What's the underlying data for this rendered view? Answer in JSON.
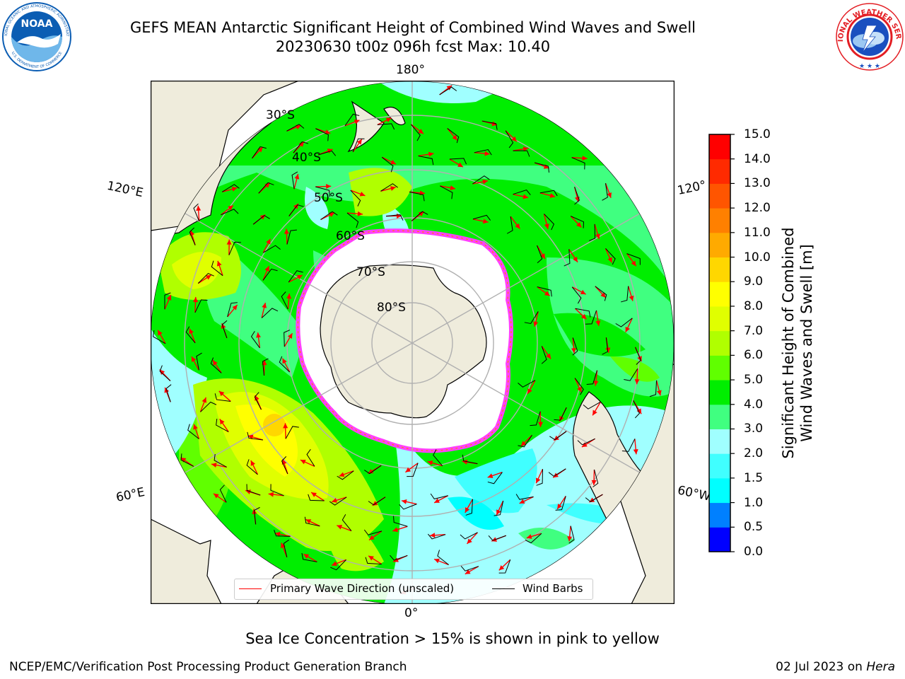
{
  "title": {
    "line1": "GEFS MEAN Antarctic Significant Height of Combined Wind Waves and Swell",
    "line2": "20230630 t00z 096h fcst   Max: 10.40"
  },
  "logos": {
    "left": {
      "text": "NOAA",
      "ring_top": "NATIONAL OCEANIC AND ATMOSPHERIC ADMINISTRATION",
      "ring_bottom": "U.S. DEPARTMENT OF COMMERCE",
      "color": "#0b5db3"
    },
    "right": {
      "ring_text": "NATIONAL WEATHER SERVICE",
      "color": "#e31e24"
    }
  },
  "map": {
    "projection": "south-polar-stereographic",
    "meridian_labels": {
      "top": "180°",
      "bottom": "0°",
      "left_upper": "120°E",
      "left_lower": "60°E",
      "right_upper": "120°",
      "right_lower": "60°W"
    },
    "latitude_labels": [
      "30°S",
      "40°S",
      "50°S",
      "60°S",
      "70°S",
      "80°S"
    ],
    "colors": {
      "land": "#efecdc",
      "ice": "#ffffff",
      "grid": "#b0b0b0",
      "coast": "#000000",
      "ice_edge": "#ff40ff",
      "arrow": "#ff0000",
      "barb": "#000000"
    }
  },
  "colorbar": {
    "label_line1": "Significant Height of Combined",
    "label_line2": "Wind Waves and Swell [m]",
    "ticks": [
      "0.0",
      "0.5",
      "1.0",
      "1.5",
      "2.0",
      "3.0",
      "4.0",
      "5.0",
      "6.0",
      "7.0",
      "8.0",
      "9.0",
      "10.0",
      "11.0",
      "12.0",
      "13.0",
      "14.0",
      "15.0"
    ],
    "colors": [
      "#0000ff",
      "#0080ff",
      "#00ffff",
      "#40ffff",
      "#a0ffff",
      "#40ff80",
      "#00ee00",
      "#60ff00",
      "#b0ff00",
      "#e0ff00",
      "#ffff00",
      "#ffd700",
      "#ffaa00",
      "#ff8000",
      "#ff5500",
      "#ff2a00",
      "#ff0000"
    ]
  },
  "legend": {
    "primary_wave": "Primary Wave Direction (unscaled)",
    "wind_barbs": "Wind Barbs"
  },
  "footnote": "Sea Ice Concentration > 15% is shown in pink to yellow",
  "footer": {
    "left": "NCEP/EMC/Verification Post Processing Product Generation Branch",
    "right_date": "02 Jul 2023 on",
    "right_host": "Hera"
  }
}
